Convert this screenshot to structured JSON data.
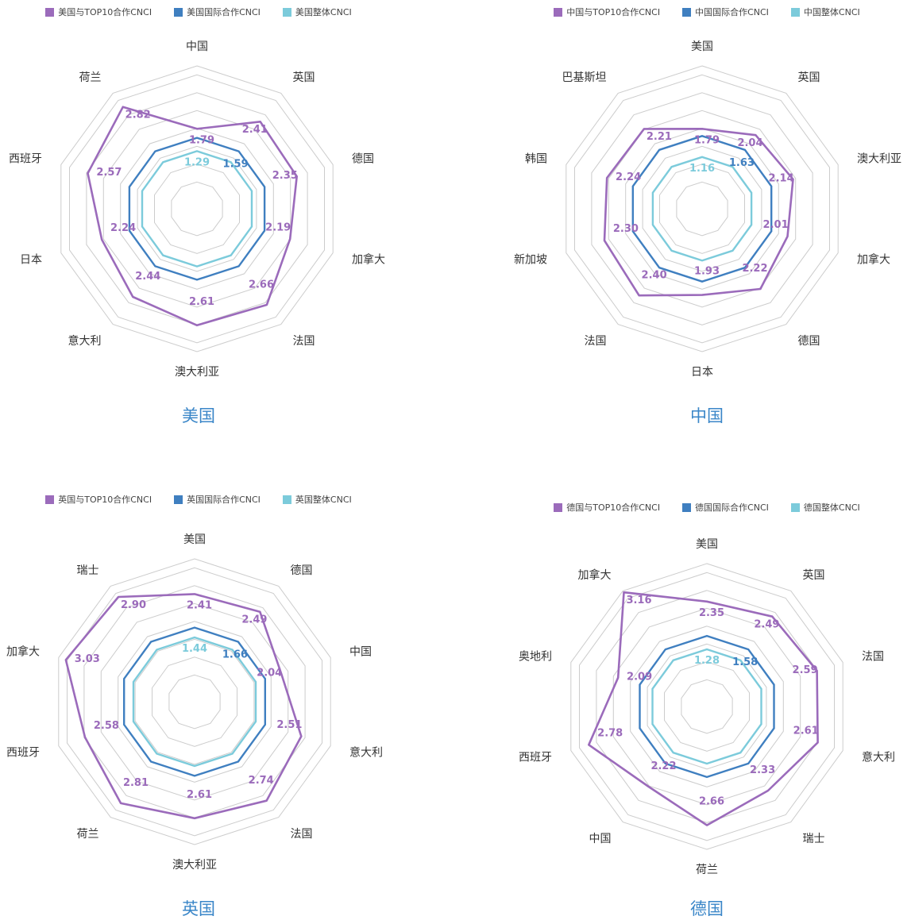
{
  "colors": {
    "top10": "#9b6bbb",
    "intl": "#3f7fc0",
    "overall": "#7ccbdb",
    "grid": "#cccccc"
  },
  "chart_data": [
    {
      "type": "radar",
      "title": "美国",
      "legend": [
        "美国与TOP10合作CNCI",
        "美国国际合作CNCI",
        "美国整体CNCI"
      ],
      "axes": [
        "中国",
        "英国",
        "德国",
        "加拿大",
        "法国",
        "澳大利亚",
        "意大利",
        "日本",
        "西班牙",
        "荷兰"
      ],
      "top10": [
        1.79,
        2.41,
        2.35,
        2.19,
        2.66,
        2.61,
        2.44,
        2.24,
        2.57,
        2.82
      ],
      "intl": 1.59,
      "overall": 1.29,
      "value_labels": {
        "top10": [
          "1.79",
          "2.41",
          "2.35",
          "2.19",
          "2.66",
          "2.61",
          "2.44",
          "2.24",
          "2.57",
          "2.82"
        ],
        "intl": "1.59",
        "overall": "1.29"
      }
    },
    {
      "type": "radar",
      "title": "中国",
      "legend": [
        "中国与TOP10合作CNCI",
        "中国国际合作CNCI",
        "中国整体CNCI"
      ],
      "axes": [
        "美国",
        "英国",
        "澳大利亚",
        "加拿大",
        "德国",
        "日本",
        "法国",
        "新加坡",
        "韩国",
        "巴基斯坦"
      ],
      "top10": [
        1.79,
        2.04,
        2.14,
        2.01,
        2.22,
        1.93,
        2.4,
        2.3,
        2.24,
        2.21
      ],
      "intl": 1.63,
      "overall": 1.16,
      "value_labels": {
        "top10": [
          "1.79",
          "2.04",
          "2.14",
          "2.01",
          "2.22",
          "1.93",
          "2.40",
          "2.30",
          "2.24",
          "2.21"
        ],
        "intl": "1.63",
        "overall": "1.16"
      }
    },
    {
      "type": "radar",
      "title": "英国",
      "legend": [
        "英国与TOP10合作CNCI",
        "英国国际合作CNCI",
        "英国整体CNCI"
      ],
      "axes": [
        "美国",
        "德国",
        "中国",
        "意大利",
        "法国",
        "澳大利亚",
        "荷兰",
        "西班牙",
        "加拿大",
        "瑞士"
      ],
      "top10": [
        2.41,
        2.49,
        2.04,
        2.51,
        2.74,
        2.61,
        2.81,
        2.58,
        3.03,
        2.9
      ],
      "intl": 1.66,
      "overall": 1.44,
      "value_labels": {
        "top10": [
          "2.41",
          "2.49",
          "2.04",
          "2.51",
          "2.74",
          "2.61",
          "2.81",
          "2.58",
          "3.03",
          "2.90"
        ],
        "intl": "1.66",
        "overall": "1.44"
      }
    },
    {
      "type": "radar",
      "title": "德国",
      "legend": [
        "德国与TOP10合作CNCI",
        "德国国际合作CNCI",
        "德国整体CNCI"
      ],
      "axes": [
        "美国",
        "英国",
        "法国",
        "意大利",
        "瑞士",
        "荷兰",
        "中国",
        "西班牙",
        "奥地利",
        "加拿大"
      ],
      "top10": [
        2.35,
        2.49,
        2.59,
        2.61,
        2.33,
        2.66,
        2.22,
        2.78,
        2.09,
        3.16
      ],
      "intl": 1.58,
      "overall": 1.28,
      "value_labels": {
        "top10": [
          "2.35",
          "2.49",
          "2.59",
          "2.61",
          "2.33",
          "2.66",
          "2.22",
          "2.78",
          "2.09",
          "3.16"
        ],
        "intl": "1.58",
        "overall": "1.28"
      }
    }
  ]
}
